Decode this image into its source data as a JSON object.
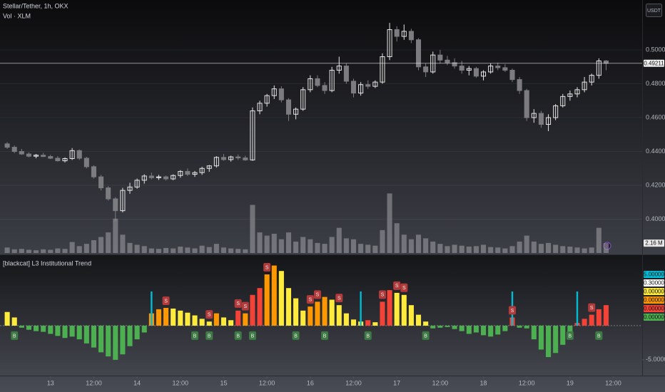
{
  "header": {
    "symbol": "Stellar/Tether, 1h, OKX",
    "currency": "USDT"
  },
  "chart_data": [
    {
      "type": "candlestick",
      "xlim": [
        -1,
        88
      ],
      "ylim": [
        0.38,
        0.5295
      ],
      "yticks": [
        {
          "value": 0.4,
          "label": "0.40000"
        },
        {
          "value": 0.42,
          "label": "0.42000"
        },
        {
          "value": 0.44,
          "label": "0.44000"
        },
        {
          "value": 0.46,
          "label": "0.46000"
        },
        {
          "value": 0.48,
          "label": "0.48000"
        },
        {
          "value": 0.5,
          "label": "0.50000"
        }
      ],
      "up_color": "#e6e6e6",
      "down_color": "#7c7c80",
      "last": {
        "value": 0.49211,
        "label": "0.49211"
      },
      "open": [
        0.4445,
        0.4425,
        0.44,
        0.4385,
        0.4372,
        0.4378,
        0.437,
        0.436,
        0.4345,
        0.4358,
        0.4405,
        0.436,
        0.431,
        0.425,
        0.4185,
        0.412,
        0.405,
        0.417,
        0.419,
        0.423,
        0.4255,
        0.4245,
        0.425,
        0.4238,
        0.4258,
        0.4282,
        0.4265,
        0.4275,
        0.43,
        0.4315,
        0.4365,
        0.4352,
        0.4368,
        0.4362,
        0.435,
        0.464,
        0.4685,
        0.473,
        0.477,
        0.4705,
        0.462,
        0.465,
        0.4765,
        0.483,
        0.479,
        0.476,
        0.488,
        0.4905,
        0.4815,
        0.4745,
        0.4795,
        0.4785,
        0.481,
        0.496,
        0.512,
        0.508,
        0.511,
        0.506,
        0.49,
        0.487,
        0.497,
        0.494,
        0.4925,
        0.4905,
        0.488,
        0.489,
        0.4845,
        0.487,
        0.4905,
        0.4895,
        0.488,
        0.4825,
        0.476,
        0.46,
        0.4625,
        0.456,
        0.46,
        0.467,
        0.4725,
        0.474,
        0.4765,
        0.481,
        0.485,
        0.4935
      ],
      "high": [
        0.4455,
        0.4435,
        0.4415,
        0.4395,
        0.4385,
        0.4392,
        0.438,
        0.4372,
        0.4365,
        0.442,
        0.4412,
        0.4368,
        0.4318,
        0.4262,
        0.4195,
        0.413,
        0.4185,
        0.4215,
        0.424,
        0.4265,
        0.4275,
        0.4262,
        0.4258,
        0.4265,
        0.429,
        0.43,
        0.4285,
        0.431,
        0.432,
        0.4372,
        0.4385,
        0.4375,
        0.4382,
        0.4375,
        0.466,
        0.47,
        0.474,
        0.479,
        0.4785,
        0.4715,
        0.466,
        0.478,
        0.485,
        0.485,
        0.481,
        0.49,
        0.496,
        0.492,
        0.483,
        0.481,
        0.482,
        0.482,
        0.498,
        0.516,
        0.514,
        0.515,
        0.5125,
        0.507,
        0.492,
        0.499,
        0.5,
        0.4965,
        0.495,
        0.4935,
        0.4905,
        0.49,
        0.488,
        0.492,
        0.4925,
        0.4915,
        0.489,
        0.484,
        0.477,
        0.465,
        0.464,
        0.462,
        0.468,
        0.474,
        0.476,
        0.478,
        0.484,
        0.486,
        0.495,
        0.494
      ],
      "low": [
        0.4415,
        0.439,
        0.438,
        0.4365,
        0.436,
        0.4368,
        0.4355,
        0.434,
        0.4335,
        0.435,
        0.435,
        0.43,
        0.424,
        0.417,
        0.411,
        0.399,
        0.404,
        0.415,
        0.418,
        0.421,
        0.4235,
        0.4232,
        0.4228,
        0.423,
        0.4245,
        0.4255,
        0.425,
        0.4262,
        0.428,
        0.4305,
        0.4345,
        0.434,
        0.435,
        0.4345,
        0.4345,
        0.462,
        0.4665,
        0.471,
        0.469,
        0.458,
        0.459,
        0.464,
        0.475,
        0.478,
        0.474,
        0.475,
        0.486,
        0.48,
        0.472,
        0.473,
        0.477,
        0.4775,
        0.48,
        0.494,
        0.505,
        0.506,
        0.504,
        0.488,
        0.484,
        0.486,
        0.492,
        0.491,
        0.489,
        0.486,
        0.485,
        0.4835,
        0.482,
        0.486,
        0.488,
        0.487,
        0.481,
        0.474,
        0.458,
        0.457,
        0.454,
        0.452,
        0.4585,
        0.466,
        0.47,
        0.472,
        0.475,
        0.479,
        0.483,
        0.488
      ],
      "close": [
        0.4425,
        0.44,
        0.4385,
        0.4372,
        0.4378,
        0.437,
        0.436,
        0.4345,
        0.4358,
        0.4405,
        0.436,
        0.431,
        0.425,
        0.4185,
        0.412,
        0.405,
        0.417,
        0.419,
        0.423,
        0.4255,
        0.4245,
        0.425,
        0.4238,
        0.4258,
        0.4282,
        0.4265,
        0.4275,
        0.43,
        0.4315,
        0.4365,
        0.4352,
        0.4368,
        0.4362,
        0.435,
        0.464,
        0.4685,
        0.473,
        0.477,
        0.4705,
        0.462,
        0.465,
        0.4765,
        0.483,
        0.479,
        0.476,
        0.488,
        0.4905,
        0.4815,
        0.4745,
        0.4795,
        0.4785,
        0.481,
        0.496,
        0.512,
        0.508,
        0.511,
        0.506,
        0.49,
        0.487,
        0.497,
        0.494,
        0.4925,
        0.4905,
        0.488,
        0.489,
        0.4845,
        0.487,
        0.4905,
        0.4895,
        0.488,
        0.4825,
        0.476,
        0.46,
        0.4625,
        0.456,
        0.46,
        0.467,
        0.4725,
        0.474,
        0.4765,
        0.481,
        0.485,
        0.4935,
        0.4921
      ]
    },
    {
      "type": "bar",
      "title": "Vol · XLM",
      "xlim": [
        -1,
        88
      ],
      "ylim": [
        0,
        14
      ],
      "color": "#a3a3a8",
      "last": {
        "value": 2.16,
        "label": "2.16 M"
      },
      "values": [
        1.2,
        0.8,
        0.9,
        0.7,
        0.6,
        0.8,
        0.7,
        1.0,
        0.9,
        2.4,
        1.5,
        2.0,
        2.8,
        3.5,
        4.5,
        7.5,
        4.0,
        2.2,
        1.8,
        1.5,
        1.0,
        0.9,
        1.1,
        1.0,
        1.4,
        1.2,
        1.0,
        1.6,
        1.3,
        2.0,
        1.2,
        1.0,
        0.9,
        0.8,
        10.5,
        4.5,
        3.8,
        4.2,
        3.0,
        4.5,
        2.5,
        3.5,
        3.0,
        2.2,
        2.0,
        3.5,
        5.5,
        3.2,
        3.0,
        2.0,
        1.8,
        1.6,
        5.0,
        13.0,
        6.5,
        4.0,
        3.0,
        4.0,
        3.2,
        2.5,
        2.0,
        1.5,
        1.8,
        1.6,
        1.4,
        1.5,
        1.8,
        1.3,
        1.2,
        1.0,
        1.5,
        2.5,
        3.8,
        2.5,
        2.0,
        2.2,
        1.8,
        1.5,
        1.4,
        1.2,
        1.0,
        1.2,
        5.5,
        2.16
      ]
    },
    {
      "type": "bar",
      "title": "[blackcat] L3 Institutional Trend",
      "xlim": [
        -1,
        88
      ],
      "ylim": [
        -7.1,
        9.9
      ],
      "yticks": [
        {
          "value": -5,
          "label": "-5.00000"
        }
      ],
      "xticks": [
        {
          "value": 6,
          "label": "13"
        },
        {
          "value": 12,
          "label": "12:00"
        },
        {
          "value": 18,
          "label": "14"
        },
        {
          "value": 24,
          "label": "12:00"
        },
        {
          "value": 30,
          "label": "15"
        },
        {
          "value": 36,
          "label": "12:00"
        },
        {
          "value": 42,
          "label": "16"
        },
        {
          "value": 48,
          "label": "12:00"
        },
        {
          "value": 54,
          "label": "17"
        },
        {
          "value": 60,
          "label": "12:00"
        },
        {
          "value": 66,
          "label": "18"
        },
        {
          "value": 72,
          "label": "12:00"
        },
        {
          "value": 78,
          "label": "19"
        },
        {
          "value": 84,
          "label": "12:00"
        }
      ],
      "values": [
        2.0,
        1.2,
        -0.3,
        -0.6,
        -0.8,
        -0.9,
        -1.2,
        -1.5,
        -1.8,
        -1.6,
        -2.0,
        -2.6,
        -3.2,
        -3.9,
        -4.5,
        -5.0,
        -4.2,
        -3.0,
        -2.0,
        -1.0,
        1.8,
        2.4,
        2.6,
        2.5,
        2.2,
        1.9,
        1.5,
        1.0,
        0.6,
        1.8,
        1.2,
        0.8,
        2.2,
        1.8,
        4.5,
        5.5,
        7.5,
        8.8,
        8.0,
        5.5,
        4.0,
        2.2,
        2.8,
        3.5,
        4.2,
        3.8,
        3.0,
        1.8,
        0.9,
        0.6,
        0.8,
        0.5,
        3.5,
        5.2,
        4.8,
        4.5,
        3.0,
        1.6,
        0.6,
        -0.4,
        -0.3,
        -0.2,
        -0.5,
        -0.8,
        -1.2,
        -1.0,
        -1.4,
        -1.6,
        -1.3,
        -0.8,
        1.2,
        -0.3,
        -0.4,
        -2.0,
        -3.5,
        -4.6,
        -4.0,
        -2.8,
        -1.5,
        0.4,
        1.0,
        1.6,
        2.4,
        3.0
      ],
      "colors": [
        "#ffeb3b",
        "#ffeb3b",
        "#4caf50",
        "#4caf50",
        "#4caf50",
        "#4caf50",
        "#4caf50",
        "#4caf50",
        "#4caf50",
        "#4caf50",
        "#4caf50",
        "#4caf50",
        "#4caf50",
        "#4caf50",
        "#4caf50",
        "#4caf50",
        "#4caf50",
        "#4caf50",
        "#4caf50",
        "#4caf50",
        "#ff9800",
        "#ff9800",
        "#ff9800",
        "#ffeb3b",
        "#ffeb3b",
        "#ffeb3b",
        "#ffeb3b",
        "#ffeb3b",
        "#ffeb3b",
        "#ff9800",
        "#ffeb3b",
        "#ffeb3b",
        "#f44336",
        "#ff9800",
        "#f44336",
        "#f44336",
        "#ff9800",
        "#ff9800",
        "#ffeb3b",
        "#ffeb3b",
        "#ffeb3b",
        "#ffeb3b",
        "#ff9800",
        "#ff9800",
        "#ff9800",
        "#ffeb3b",
        "#ffeb3b",
        "#ffeb3b",
        "#ffeb3b",
        "#ffeb3b",
        "#f44336",
        "#ffeb3b",
        "#f44336",
        "#f44336",
        "#ffeb3b",
        "#ffeb3b",
        "#ffeb3b",
        "#ffeb3b",
        "#ffeb3b",
        "#4caf50",
        "#4caf50",
        "#4caf50",
        "#4caf50",
        "#4caf50",
        "#4caf50",
        "#4caf50",
        "#4caf50",
        "#4caf50",
        "#4caf50",
        "#4caf50",
        "#f44336",
        "#4caf50",
        "#4caf50",
        "#4caf50",
        "#4caf50",
        "#4caf50",
        "#4caf50",
        "#4caf50",
        "#4caf50",
        "#f44336",
        "#f44336",
        "#f44336",
        "#f44336",
        "#f44336"
      ],
      "signals": {
        "color": "#00bcd4",
        "x": [
          20,
          49,
          70,
          79
        ],
        "values": [
          5,
          5,
          5,
          5
        ]
      },
      "sell": {
        "label": "S",
        "color": "#b23a3a",
        "x": [
          22,
          28,
          32,
          33,
          36,
          42,
          43,
          46,
          52,
          54,
          55,
          70,
          81
        ]
      },
      "buy": {
        "label": "B",
        "color": "#3d7a44",
        "x": [
          1,
          26,
          28,
          32,
          34,
          40,
          44,
          50,
          58,
          78,
          82
        ]
      },
      "last_labels": [
        {
          "value": 5,
          "label": "5.00000",
          "color": "#00bcd4"
        },
        {
          "value": 0.3,
          "label": "0.30000",
          "color": "#ffffff"
        },
        {
          "value": 0,
          "label": "0.00000",
          "color": "#ffeb3b"
        },
        {
          "value": 0,
          "label": "0.00000",
          "color": "#ff9800"
        },
        {
          "value": 0,
          "label": "0.00000",
          "color": "#f44336"
        },
        {
          "value": 0,
          "label": "0.00000",
          "color": "#4caf50"
        }
      ]
    }
  ]
}
